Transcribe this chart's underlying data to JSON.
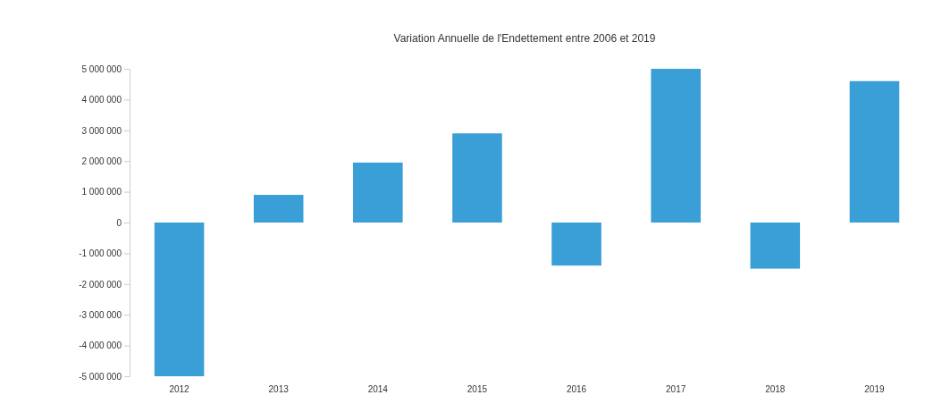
{
  "chart_data": {
    "type": "bar",
    "title": "Variation Annuelle de l'Endettement entre 2006 et 2019",
    "categories": [
      "2012",
      "2013",
      "2014",
      "2015",
      "2016",
      "2017",
      "2018",
      "2019"
    ],
    "values": [
      -5000000,
      900000,
      1950000,
      2900000,
      -1400000,
      5000000,
      -1500000,
      4600000
    ],
    "color": "#3a9fd6",
    "ylim": [
      -5000000,
      5000000
    ],
    "yticks": [
      {
        "value": 5000000,
        "label": "5 000 000"
      },
      {
        "value": 4000000,
        "label": "4 000 000"
      },
      {
        "value": 3000000,
        "label": "3 000 000"
      },
      {
        "value": 2000000,
        "label": "2 000 000"
      },
      {
        "value": 1000000,
        "label": "1 000 000"
      },
      0,
      {
        "value": -1000000,
        "label": "-1 000 000"
      },
      {
        "value": -2000000,
        "label": "-2 000 000"
      },
      {
        "value": -3000000,
        "label": "-3 000 000"
      },
      {
        "value": -4000000,
        "label": "-4 000 000"
      },
      {
        "value": -5000000,
        "label": "-5 000 000"
      }
    ],
    "grid": false
  }
}
